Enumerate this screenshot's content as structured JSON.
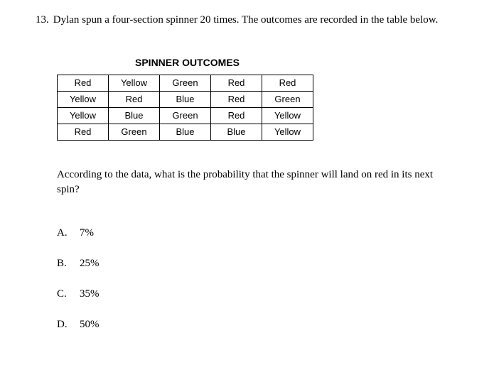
{
  "question": {
    "number": "13.",
    "text": "Dylan spun a four-section spinner 20 times. The outcomes are recorded in the table below."
  },
  "table": {
    "title": "SPINNER OUTCOMES",
    "rows": [
      [
        "Red",
        "Yellow",
        "Green",
        "Red",
        "Red"
      ],
      [
        "Yellow",
        "Red",
        "Blue",
        "Red",
        "Green"
      ],
      [
        "Yellow",
        "Blue",
        "Green",
        "Red",
        "Yellow"
      ],
      [
        "Red",
        "Green",
        "Blue",
        "Blue",
        "Yellow"
      ]
    ]
  },
  "followup": "According to the data, what is the probability that the spinner will land on red in its next spin?",
  "choices": [
    {
      "letter": "A.",
      "text": "7%"
    },
    {
      "letter": "B.",
      "text": "25%"
    },
    {
      "letter": "C.",
      "text": "35%"
    },
    {
      "letter": "D.",
      "text": "50%"
    }
  ]
}
